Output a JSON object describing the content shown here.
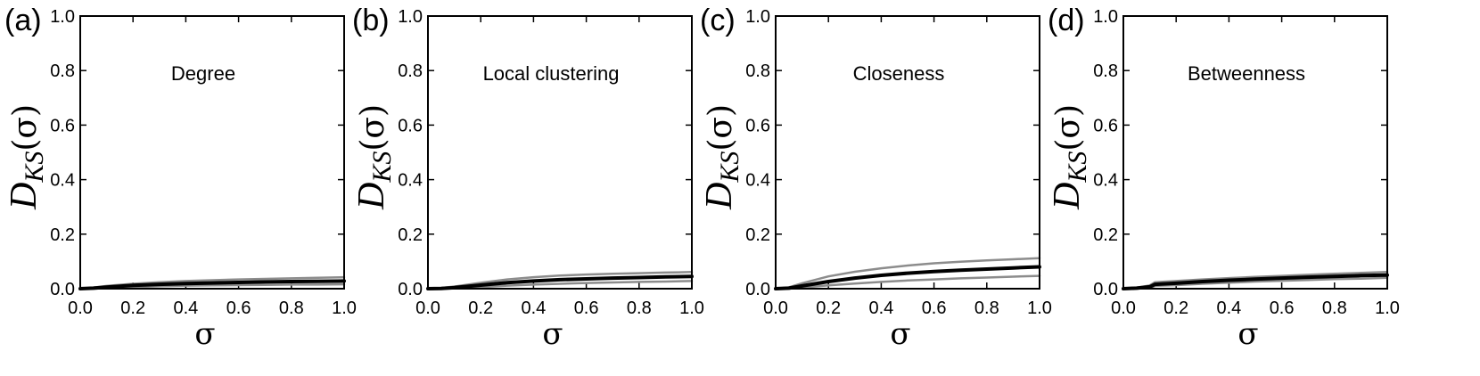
{
  "chart_data": [
    {
      "type": "line",
      "panel_label": "(a)",
      "title": "Degree",
      "xlabel": "σ",
      "ylabel": {
        "main": "D",
        "sub": "KS",
        "arg": "(σ)"
      },
      "xlim": [
        0.0,
        1.0
      ],
      "ylim": [
        0.0,
        1.0
      ],
      "xticks": [
        "0.0",
        "0.2",
        "0.4",
        "0.6",
        "0.8",
        "1.0"
      ],
      "yticks": [
        "0.0",
        "0.2",
        "0.4",
        "0.6",
        "0.8",
        "1.0"
      ],
      "grid": false,
      "x": [
        0.0,
        0.05,
        0.1,
        0.2,
        0.3,
        0.4,
        0.5,
        0.6,
        0.7,
        0.8,
        0.9,
        1.0
      ],
      "series": [
        {
          "role": "upper",
          "color": "#8c8c8c",
          "values": [
            0.0,
            0.004,
            0.01,
            0.018,
            0.024,
            0.028,
            0.031,
            0.034,
            0.036,
            0.038,
            0.04,
            0.042
          ]
        },
        {
          "role": "mean",
          "color": "#000000",
          "values": [
            0.0,
            0.002,
            0.006,
            0.012,
            0.016,
            0.019,
            0.021,
            0.023,
            0.025,
            0.026,
            0.027,
            0.028
          ]
        },
        {
          "role": "lower",
          "color": "#8c8c8c",
          "values": [
            0.0,
            0.0,
            0.002,
            0.006,
            0.009,
            0.011,
            0.012,
            0.013,
            0.014,
            0.015,
            0.015,
            0.016
          ]
        }
      ]
    },
    {
      "type": "line",
      "panel_label": "(b)",
      "title": "Local clustering",
      "xlabel": "σ",
      "ylabel": {
        "main": "D",
        "sub": "KS",
        "arg": "(σ)"
      },
      "xlim": [
        0.0,
        1.0
      ],
      "ylim": [
        0.0,
        1.0
      ],
      "xticks": [
        "0.0",
        "0.2",
        "0.4",
        "0.6",
        "0.8",
        "1.0"
      ],
      "yticks": [
        "0.0",
        "0.2",
        "0.4",
        "0.6",
        "0.8",
        "1.0"
      ],
      "grid": false,
      "x": [
        0.0,
        0.05,
        0.1,
        0.2,
        0.3,
        0.4,
        0.5,
        0.6,
        0.7,
        0.8,
        0.9,
        1.0
      ],
      "series": [
        {
          "role": "upper",
          "color": "#8c8c8c",
          "values": [
            0.0,
            0.003,
            0.008,
            0.022,
            0.034,
            0.042,
            0.048,
            0.052,
            0.055,
            0.057,
            0.059,
            0.061
          ]
        },
        {
          "role": "mean",
          "color": "#000000",
          "values": [
            0.0,
            0.001,
            0.004,
            0.013,
            0.022,
            0.028,
            0.033,
            0.036,
            0.039,
            0.041,
            0.043,
            0.045
          ]
        },
        {
          "role": "lower",
          "color": "#8c8c8c",
          "values": [
            0.0,
            0.0,
            0.001,
            0.006,
            0.011,
            0.015,
            0.018,
            0.021,
            0.023,
            0.025,
            0.026,
            0.028
          ]
        }
      ]
    },
    {
      "type": "line",
      "panel_label": "(c)",
      "title": "Closeness",
      "xlabel": "σ",
      "ylabel": {
        "main": "D",
        "sub": "KS",
        "arg": "(σ)"
      },
      "xlim": [
        0.0,
        1.0
      ],
      "ylim": [
        0.0,
        1.0
      ],
      "xticks": [
        "0.0",
        "0.2",
        "0.4",
        "0.6",
        "0.8",
        "1.0"
      ],
      "yticks": [
        "0.0",
        "0.2",
        "0.4",
        "0.6",
        "0.8",
        "1.0"
      ],
      "grid": false,
      "x": [
        0.0,
        0.05,
        0.1,
        0.2,
        0.3,
        0.4,
        0.5,
        0.6,
        0.7,
        0.8,
        0.9,
        1.0
      ],
      "series": [
        {
          "role": "upper",
          "color": "#8c8c8c",
          "values": [
            0.0,
            0.005,
            0.02,
            0.045,
            0.062,
            0.075,
            0.085,
            0.093,
            0.099,
            0.104,
            0.108,
            0.112
          ]
        },
        {
          "role": "mean",
          "color": "#000000",
          "values": [
            0.0,
            0.002,
            0.01,
            0.026,
            0.039,
            0.049,
            0.057,
            0.063,
            0.068,
            0.072,
            0.076,
            0.08
          ]
        },
        {
          "role": "lower",
          "color": "#8c8c8c",
          "values": [
            0.0,
            0.0,
            0.004,
            0.012,
            0.019,
            0.025,
            0.03,
            0.034,
            0.038,
            0.041,
            0.044,
            0.047
          ]
        }
      ]
    },
    {
      "type": "line",
      "panel_label": "(d)",
      "title": "Betweenness",
      "xlabel": "σ",
      "ylabel": {
        "main": "D",
        "sub": "KS",
        "arg": "(σ)"
      },
      "xlim": [
        0.0,
        1.0
      ],
      "ylim": [
        0.0,
        1.0
      ],
      "xticks": [
        "0.0",
        "0.2",
        "0.4",
        "0.6",
        "0.8",
        "1.0"
      ],
      "yticks": [
        "0.0",
        "0.2",
        "0.4",
        "0.6",
        "0.8",
        "1.0"
      ],
      "grid": false,
      "x": [
        0.0,
        0.05,
        0.1,
        0.12,
        0.2,
        0.3,
        0.4,
        0.5,
        0.6,
        0.7,
        0.8,
        0.9,
        1.0
      ],
      "series": [
        {
          "role": "upper",
          "color": "#8c8c8c",
          "values": [
            0.0,
            0.004,
            0.012,
            0.024,
            0.028,
            0.034,
            0.039,
            0.043,
            0.047,
            0.051,
            0.055,
            0.058,
            0.061
          ]
        },
        {
          "role": "mean",
          "color": "#000000",
          "values": [
            0.0,
            0.002,
            0.007,
            0.016,
            0.02,
            0.026,
            0.031,
            0.035,
            0.039,
            0.042,
            0.045,
            0.048,
            0.05
          ]
        },
        {
          "role": "lower",
          "color": "#8c8c8c",
          "values": [
            0.0,
            0.0,
            0.003,
            0.01,
            0.013,
            0.018,
            0.022,
            0.026,
            0.029,
            0.032,
            0.035,
            0.037,
            0.04
          ]
        }
      ]
    }
  ]
}
